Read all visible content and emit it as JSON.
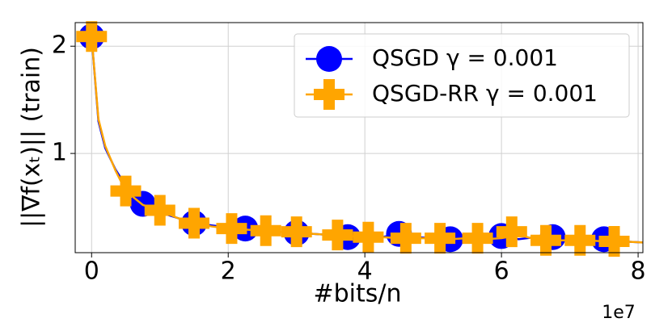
{
  "chart_data": {
    "type": "line",
    "x_label": "#bits/n",
    "y_label": "||∇f(xₜ)|| (train)",
    "x_offset_label": "1e7",
    "xlim": [
      -0.24,
      8.07
    ],
    "ylim": [
      0.075,
      2.22
    ],
    "xticks": [
      0,
      2,
      4,
      6,
      8
    ],
    "yticks": [
      1,
      2
    ],
    "grid": true,
    "legend": "upper right",
    "series": [
      {
        "name": "QSGD γ =  0.001",
        "color": "#0000ff",
        "marker": "circle",
        "x": [
          0,
          0.1,
          0.2,
          0.35,
          0.5,
          0.75,
          1.0,
          1.25,
          1.5,
          1.75,
          2.0,
          2.25,
          2.5,
          2.75,
          3.0,
          3.25,
          3.5,
          3.75,
          4.0,
          4.25,
          4.5,
          4.75,
          5.0,
          5.25,
          5.5,
          5.75,
          6.0,
          6.25,
          6.5,
          6.75,
          7.0,
          7.25,
          7.5,
          7.75,
          8.07
        ],
        "values": [
          2.09,
          1.3,
          1.05,
          0.85,
          0.7,
          0.53,
          0.45,
          0.4,
          0.35,
          0.33,
          0.31,
          0.3,
          0.28,
          0.27,
          0.26,
          0.25,
          0.24,
          0.22,
          0.23,
          0.22,
          0.25,
          0.22,
          0.21,
          0.2,
          0.2,
          0.21,
          0.23,
          0.2,
          0.22,
          0.22,
          0.19,
          0.2,
          0.2,
          0.18,
          0.17
        ],
        "markers": {
          "x": [
            0,
            0.75,
            1.5,
            2.25,
            3.0,
            3.75,
            4.5,
            5.25,
            6.0,
            6.75,
            7.5
          ],
          "values": [
            2.09,
            0.53,
            0.35,
            0.3,
            0.26,
            0.22,
            0.25,
            0.2,
            0.23,
            0.22,
            0.2
          ]
        }
      },
      {
        "name": "QSGD-RR γ =  0.001",
        "color": "#ffa500",
        "marker": "plus",
        "x": [
          0,
          0.1,
          0.2,
          0.35,
          0.5,
          0.75,
          1.0,
          1.25,
          1.5,
          1.75,
          2.0,
          2.25,
          2.5,
          2.75,
          3.0,
          3.25,
          3.5,
          3.75,
          4.0,
          4.25,
          4.5,
          4.75,
          5.0,
          5.25,
          5.5,
          5.75,
          6.0,
          6.25,
          6.5,
          6.75,
          7.0,
          7.25,
          7.5,
          7.75,
          8.07
        ],
        "values": [
          2.09,
          1.32,
          1.07,
          0.84,
          0.65,
          0.52,
          0.47,
          0.4,
          0.35,
          0.32,
          0.3,
          0.29,
          0.28,
          0.27,
          0.27,
          0.25,
          0.24,
          0.23,
          0.22,
          0.22,
          0.21,
          0.21,
          0.21,
          0.2,
          0.21,
          0.2,
          0.21,
          0.24,
          0.2,
          0.19,
          0.19,
          0.19,
          0.18,
          0.18,
          0.17
        ],
        "markers": {
          "x": [
            0,
            0.5,
            1.0,
            1.5,
            2.05,
            2.55,
            3.0,
            3.6,
            4.05,
            4.6,
            5.1,
            5.65,
            6.15,
            6.65,
            7.15,
            7.65
          ],
          "values": [
            2.09,
            0.65,
            0.47,
            0.35,
            0.3,
            0.28,
            0.27,
            0.24,
            0.22,
            0.21,
            0.21,
            0.21,
            0.27,
            0.19,
            0.19,
            0.18
          ]
        }
      }
    ]
  }
}
